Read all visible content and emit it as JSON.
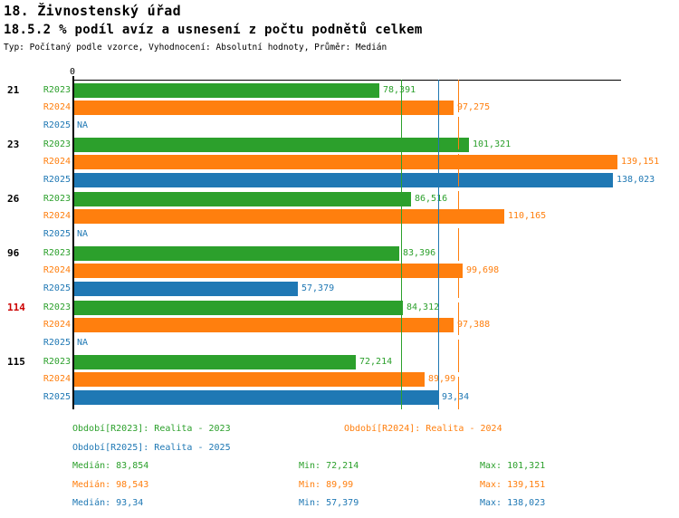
{
  "header": {
    "title": "18. Živnostenský úřad",
    "subtitle": "18.5.2 % podíl avíz a usnesení z počtu podnětů celkem",
    "meta": "Typ: Počítaný podle vzorce, Vyhodnocení: Absolutní hodnoty, Průměr: Medián"
  },
  "colors": {
    "r2023": "#2ca02c",
    "r2024": "#ff7f0e",
    "r2025": "#1f78b4",
    "axis": "#000000",
    "highlight_group_label": "#cc0000"
  },
  "chart_data": {
    "type": "bar",
    "orientation": "horizontal",
    "title": "18.5.2 % podíl avíz a usnesení z počtu podnětů celkem",
    "x_axis": {
      "zero_label": "0",
      "min": 0,
      "max": 140.4,
      "grid": false
    },
    "na_label": "NA",
    "series": [
      {
        "id": "R2023",
        "name": "Realita - 2023",
        "color": "#2ca02c"
      },
      {
        "id": "R2024",
        "name": "Realita - 2024",
        "color": "#ff7f0e"
      },
      {
        "id": "R2025",
        "name": "Realita - 2025",
        "color": "#1f78b4"
      }
    ],
    "groups": [
      {
        "label": "21",
        "highlight": false,
        "values": [
          "78,391",
          "97,275",
          "NA"
        ]
      },
      {
        "label": "23",
        "highlight": false,
        "values": [
          "101,321",
          "139,151",
          "138,023"
        ]
      },
      {
        "label": "26",
        "highlight": false,
        "values": [
          "86,516",
          "110,165",
          "NA"
        ]
      },
      {
        "label": "96",
        "highlight": false,
        "values": [
          "83,396",
          "99,698",
          "57,379"
        ]
      },
      {
        "label": "114",
        "highlight": true,
        "values": [
          "84,312",
          "97,388",
          "NA"
        ]
      },
      {
        "label": "115",
        "highlight": false,
        "values": [
          "72,214",
          "89,99",
          "93,34"
        ]
      }
    ],
    "median_lines": [
      "83,854",
      "98,543",
      "93,34"
    ]
  },
  "legend": {
    "items": [
      {
        "label": "Období[R2023]: Realita - 2023",
        "series": 0
      },
      {
        "label": "Období[R2024]: Realita - 2024",
        "series": 1
      },
      {
        "label": "Období[R2025]: Realita - 2025",
        "series": 2
      }
    ]
  },
  "stats": {
    "median_label": "Medián",
    "min_label": "Min",
    "max_label": "Max",
    "rows": [
      {
        "series": 0,
        "median": "83,854",
        "min": "72,214",
        "max": "101,321"
      },
      {
        "series": 1,
        "median": "98,543",
        "min": "89,99",
        "max": "139,151"
      },
      {
        "series": 2,
        "median": "93,34",
        "min": "57,379",
        "max": "138,023"
      }
    ]
  }
}
